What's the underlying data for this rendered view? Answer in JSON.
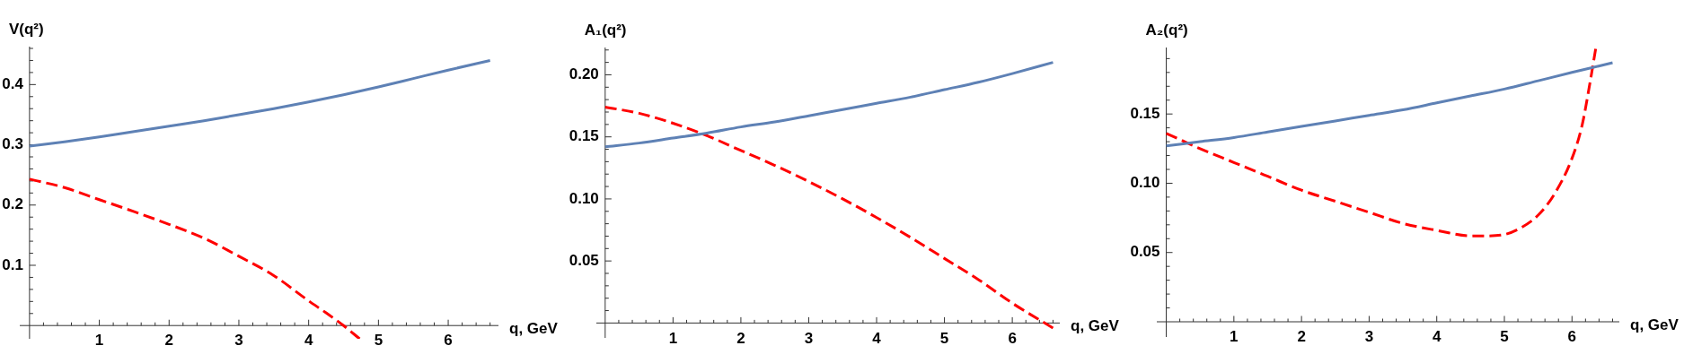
{
  "chart_data": [
    {
      "type": "line",
      "xlabel": "q, GeV",
      "ylabel": "V(q²)",
      "xlim": [
        -0.14,
        6.72
      ],
      "ylim": [
        -0.022,
        0.463
      ],
      "xticks": [
        {
          "value": 0.2,
          "label": null
        },
        {
          "value": 0.4,
          "label": null
        },
        {
          "value": 0.6,
          "label": null
        },
        {
          "value": 0.8,
          "label": null
        },
        1,
        {
          "value": 1.2,
          "label": null
        },
        {
          "value": 1.4,
          "label": null
        },
        {
          "value": 1.6,
          "label": null
        },
        {
          "value": 1.8,
          "label": null
        },
        2,
        {
          "value": 2.2,
          "label": null
        },
        {
          "value": 2.4,
          "label": null
        },
        {
          "value": 2.6,
          "label": null
        },
        {
          "value": 2.8,
          "label": null
        },
        3,
        {
          "value": 3.2,
          "label": null
        },
        {
          "value": 3.4,
          "label": null
        },
        {
          "value": 3.6,
          "label": null
        },
        {
          "value": 3.8,
          "label": null
        },
        4,
        {
          "value": 4.2,
          "label": null
        },
        {
          "value": 4.4,
          "label": null
        },
        {
          "value": 4.6,
          "label": null
        },
        {
          "value": 4.8,
          "label": null
        },
        5,
        {
          "value": 5.2,
          "label": null
        },
        {
          "value": 5.4,
          "label": null
        },
        {
          "value": 5.6,
          "label": null
        },
        {
          "value": 5.8,
          "label": null
        },
        6,
        {
          "value": 6.2,
          "label": null
        },
        {
          "value": 6.4,
          "label": null
        },
        {
          "value": 6.6,
          "label": null
        }
      ],
      "yticks": [
        {
          "value": 0.02,
          "label": null
        },
        {
          "value": 0.04,
          "label": null
        },
        {
          "value": 0.06,
          "label": null
        },
        {
          "value": 0.08,
          "label": null
        },
        0.1,
        {
          "value": 0.12,
          "label": null
        },
        {
          "value": 0.14,
          "label": null
        },
        {
          "value": 0.16,
          "label": null
        },
        {
          "value": 0.18,
          "label": null
        },
        0.2,
        {
          "value": 0.22,
          "label": null
        },
        {
          "value": 0.24,
          "label": null
        },
        {
          "value": 0.26,
          "label": null
        },
        {
          "value": 0.28,
          "label": null
        },
        0.3,
        {
          "value": 0.32,
          "label": null
        },
        {
          "value": 0.34,
          "label": null
        },
        {
          "value": 0.36,
          "label": null
        },
        {
          "value": 0.38,
          "label": null
        },
        0.4,
        {
          "value": 0.42,
          "label": null
        },
        {
          "value": 0.44,
          "label": null
        },
        {
          "value": 0.46,
          "label": null
        }
      ],
      "series": [
        {
          "color": "#5e81b5",
          "line_style": "solid",
          "x": [
            0,
            0.5,
            1,
            1.5,
            2,
            2.5,
            3,
            3.5,
            4,
            4.5,
            5,
            5.5,
            6,
            6.6
          ],
          "values": [
            0.298,
            0.305,
            0.313,
            0.322,
            0.331,
            0.34,
            0.35,
            0.36,
            0.371,
            0.383,
            0.396,
            0.41,
            0.424,
            0.44
          ]
        },
        {
          "color": "#ff0000",
          "line_style": "dashed",
          "x": [
            0,
            0.5,
            1,
            1.5,
            2,
            2.5,
            3,
            3.5,
            4,
            4.25,
            4.5,
            4.73
          ],
          "values": [
            0.243,
            0.229,
            0.209,
            0.189,
            0.168,
            0.145,
            0.115,
            0.083,
            0.041,
            0.021,
            0,
            -0.022
          ]
        }
      ],
      "grid": false,
      "legend": false,
      "marker": "none"
    },
    {
      "type": "line",
      "xlabel": "q, GeV",
      "ylabel": "A₁(q²)",
      "xlim": [
        -0.13,
        6.7
      ],
      "ylim": [
        -0.012,
        0.222
      ],
      "xticks": [
        {
          "value": 0.2,
          "label": null
        },
        {
          "value": 0.4,
          "label": null
        },
        {
          "value": 0.6,
          "label": null
        },
        {
          "value": 0.8,
          "label": null
        },
        1,
        {
          "value": 1.2,
          "label": null
        },
        {
          "value": 1.4,
          "label": null
        },
        {
          "value": 1.6,
          "label": null
        },
        {
          "value": 1.8,
          "label": null
        },
        2,
        {
          "value": 2.2,
          "label": null
        },
        {
          "value": 2.4,
          "label": null
        },
        {
          "value": 2.6,
          "label": null
        },
        {
          "value": 2.8,
          "label": null
        },
        3,
        {
          "value": 3.2,
          "label": null
        },
        {
          "value": 3.4,
          "label": null
        },
        {
          "value": 3.6,
          "label": null
        },
        {
          "value": 3.8,
          "label": null
        },
        4,
        {
          "value": 4.2,
          "label": null
        },
        {
          "value": 4.4,
          "label": null
        },
        {
          "value": 4.6,
          "label": null
        },
        {
          "value": 4.8,
          "label": null
        },
        5,
        {
          "value": 5.2,
          "label": null
        },
        {
          "value": 5.4,
          "label": null
        },
        {
          "value": 5.6,
          "label": null
        },
        {
          "value": 5.8,
          "label": null
        },
        6,
        {
          "value": 6.2,
          "label": null
        },
        {
          "value": 6.4,
          "label": null
        },
        {
          "value": 6.6,
          "label": null
        }
      ],
      "yticks": [
        {
          "value": 0.01,
          "label": null
        },
        {
          "value": 0.02,
          "label": null
        },
        {
          "value": 0.03,
          "label": null
        },
        {
          "value": 0.04,
          "label": null
        },
        0.05,
        {
          "value": 0.06,
          "label": null
        },
        {
          "value": 0.07,
          "label": null
        },
        {
          "value": 0.08,
          "label": null
        },
        {
          "value": 0.09,
          "label": null
        },
        {
          "value": 0.1,
          "label": "0.10"
        },
        {
          "value": 0.11,
          "label": null
        },
        {
          "value": 0.12,
          "label": null
        },
        {
          "value": 0.13,
          "label": null
        },
        {
          "value": 0.14,
          "label": null
        },
        0.15,
        {
          "value": 0.16,
          "label": null
        },
        {
          "value": 0.17,
          "label": null
        },
        {
          "value": 0.18,
          "label": null
        },
        {
          "value": 0.19,
          "label": null
        },
        {
          "value": 0.2,
          "label": "0.20"
        },
        {
          "value": 0.21,
          "label": null
        },
        {
          "value": 0.22,
          "label": null
        }
      ],
      "series": [
        {
          "color": "#5e81b5",
          "line_style": "solid",
          "x": [
            0,
            0.5,
            1,
            1.5,
            2,
            2.5,
            3,
            3.5,
            4,
            4.5,
            5,
            5.5,
            6,
            6.6
          ],
          "values": [
            0.142,
            0.145,
            0.149,
            0.153,
            0.158,
            0.162,
            0.167,
            0.172,
            0.177,
            0.182,
            0.188,
            0.194,
            0.201,
            0.21
          ]
        },
        {
          "color": "#ff0000",
          "line_style": "dashed",
          "x": [
            0,
            0.5,
            1,
            1.5,
            2,
            2.5,
            3,
            3.5,
            4,
            4.5,
            5,
            5.5,
            6,
            6.6
          ],
          "values": [
            0.174,
            0.169,
            0.161,
            0.151,
            0.139,
            0.127,
            0.114,
            0.1,
            0.085,
            0.069,
            0.052,
            0.035,
            0.016,
            -0.004
          ]
        }
      ],
      "grid": false,
      "legend": false,
      "marker": "none"
    },
    {
      "type": "line",
      "xlabel": "q, GeV",
      "ylabel": "A₂(q²)",
      "xlim": [
        -0.14,
        6.7
      ],
      "ylim": [
        -0.011,
        0.198
      ],
      "xticks": [
        {
          "value": 0.2,
          "label": null
        },
        {
          "value": 0.4,
          "label": null
        },
        {
          "value": 0.6,
          "label": null
        },
        {
          "value": 0.8,
          "label": null
        },
        1,
        {
          "value": 1.2,
          "label": null
        },
        {
          "value": 1.4,
          "label": null
        },
        {
          "value": 1.6,
          "label": null
        },
        {
          "value": 1.8,
          "label": null
        },
        2,
        {
          "value": 2.2,
          "label": null
        },
        {
          "value": 2.4,
          "label": null
        },
        {
          "value": 2.6,
          "label": null
        },
        {
          "value": 2.8,
          "label": null
        },
        3,
        {
          "value": 3.2,
          "label": null
        },
        {
          "value": 3.4,
          "label": null
        },
        {
          "value": 3.6,
          "label": null
        },
        {
          "value": 3.8,
          "label": null
        },
        4,
        {
          "value": 4.2,
          "label": null
        },
        {
          "value": 4.4,
          "label": null
        },
        {
          "value": 4.6,
          "label": null
        },
        {
          "value": 4.8,
          "label": null
        },
        5,
        {
          "value": 5.2,
          "label": null
        },
        {
          "value": 5.4,
          "label": null
        },
        {
          "value": 5.6,
          "label": null
        },
        {
          "value": 5.8,
          "label": null
        },
        6,
        {
          "value": 6.2,
          "label": null
        },
        {
          "value": 6.4,
          "label": null
        },
        {
          "value": 6.6,
          "label": null
        }
      ],
      "yticks": [
        {
          "value": 0.01,
          "label": null
        },
        {
          "value": 0.02,
          "label": null
        },
        {
          "value": 0.03,
          "label": null
        },
        {
          "value": 0.04,
          "label": null
        },
        0.05,
        {
          "value": 0.06,
          "label": null
        },
        {
          "value": 0.07,
          "label": null
        },
        {
          "value": 0.08,
          "label": null
        },
        {
          "value": 0.09,
          "label": null
        },
        {
          "value": 0.1,
          "label": "0.10"
        },
        {
          "value": 0.11,
          "label": null
        },
        {
          "value": 0.12,
          "label": null
        },
        {
          "value": 0.13,
          "label": null
        },
        {
          "value": 0.14,
          "label": null
        },
        0.15,
        {
          "value": 0.16,
          "label": null
        },
        {
          "value": 0.17,
          "label": null
        },
        {
          "value": 0.18,
          "label": null
        },
        {
          "value": 0.19,
          "label": null
        }
      ],
      "series": [
        {
          "color": "#5e81b5",
          "line_style": "solid",
          "x": [
            0,
            0.5,
            1,
            1.5,
            2,
            2.5,
            3,
            3.5,
            4,
            4.5,
            5,
            5.5,
            6,
            6.6
          ],
          "values": [
            0.127,
            0.13,
            0.133,
            0.137,
            0.141,
            0.145,
            0.149,
            0.153,
            0.158,
            0.163,
            0.168,
            0.174,
            0.18,
            0.187
          ]
        },
        {
          "color": "#ff0000",
          "line_style": "dashed",
          "x": [
            0,
            0.5,
            1,
            1.5,
            2,
            2.5,
            3,
            3.5,
            4,
            4.5,
            4.7,
            5,
            5.25,
            5.5,
            5.75,
            6,
            6.15,
            6.25,
            6.35
          ],
          "values": [
            0.136,
            0.125,
            0.115,
            0.105,
            0.095,
            0.087,
            0.079,
            0.071,
            0.066,
            0.062,
            0.062,
            0.063,
            0.068,
            0.077,
            0.093,
            0.118,
            0.142,
            0.168,
            0.197
          ]
        }
      ],
      "grid": false,
      "legend": false,
      "marker": "none"
    }
  ]
}
